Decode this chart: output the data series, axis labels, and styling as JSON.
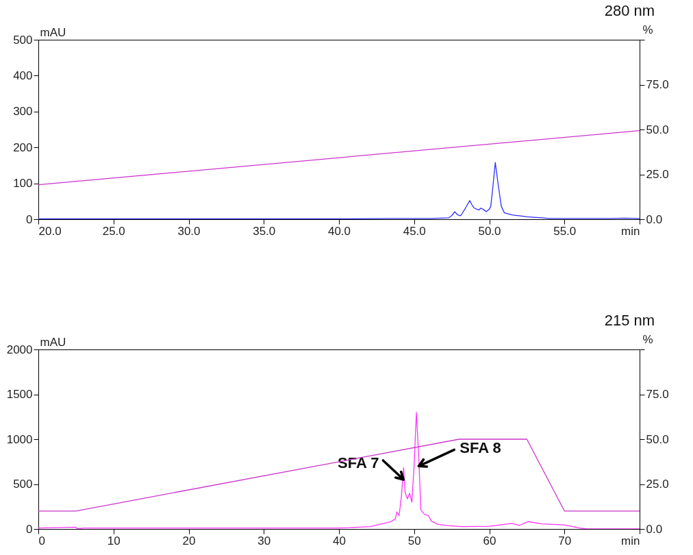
{
  "chart_data": [
    {
      "type": "line",
      "title": "280 nm",
      "ylabel": "mAU",
      "y2label": "%",
      "xlim": [
        20,
        60
      ],
      "xticks": [
        {
          "value": 20,
          "label": "20.0"
        },
        {
          "value": 25,
          "label": "25.0"
        },
        {
          "value": 30,
          "label": "30.0"
        },
        {
          "value": 35,
          "label": "35.0"
        },
        {
          "value": 40,
          "label": "40.0"
        },
        {
          "value": 45,
          "label": "45.0"
        },
        {
          "value": 50,
          "label": "50.0"
        },
        {
          "value": 55,
          "label": "55.0"
        },
        {
          "value": 60,
          "label": "min"
        }
      ],
      "ylim": [
        0,
        500
      ],
      "yticks": [
        0,
        100,
        200,
        300,
        400,
        500
      ],
      "y2lim": [
        0,
        100
      ],
      "y2ticks": [
        {
          "value": 0,
          "label": "0.0"
        },
        {
          "value": 25,
          "label": "25.0"
        },
        {
          "value": 50,
          "label": "50.0"
        },
        {
          "value": 75,
          "label": "75.0"
        },
        {
          "value": 100,
          "label": null
        }
      ],
      "series": [
        {
          "color": "#2e2eff",
          "x": [
            20,
            30,
            40,
            43.5,
            46,
            46.8,
            47.3,
            47.5,
            47.7,
            47.9,
            48.1,
            48.4,
            48.7,
            48.85,
            49.0,
            49.3,
            49.45,
            49.65,
            49.8,
            50.0,
            50.1,
            50.25,
            50.4,
            50.6,
            50.8,
            51.0,
            51.5,
            52.5,
            53.5,
            54,
            56,
            58,
            59,
            60
          ],
          "values": [
            1,
            1,
            1,
            2,
            2,
            3,
            4,
            10,
            21,
            12,
            10,
            30,
            52,
            40,
            31,
            26,
            31,
            26,
            21,
            28,
            36,
            94,
            158,
            94,
            36,
            18,
            12,
            7,
            4,
            2,
            2,
            2,
            3,
            2
          ]
        },
        {
          "color": "#cc33cc",
          "axis": "y2",
          "x": [
            20,
            60
          ],
          "values": [
            19.2,
            49.4
          ]
        }
      ]
    },
    {
      "type": "line",
      "title": "215 nm",
      "ylabel": "mAU",
      "y2label": "%",
      "xlim": [
        0,
        80
      ],
      "xticks": [
        0,
        10,
        20,
        30,
        40,
        50,
        60,
        70,
        {
          "value": 80,
          "label": "min"
        }
      ],
      "ylim": [
        0,
        2000
      ],
      "yticks": [
        0,
        500,
        1000,
        1500,
        2000
      ],
      "y2lim": [
        0,
        100
      ],
      "y2ticks": [
        {
          "value": 0,
          "label": "0.0"
        },
        {
          "value": 25,
          "label": "25.0"
        },
        {
          "value": 50,
          "label": "50.0"
        },
        {
          "value": 75,
          "label": "75.0"
        },
        {
          "value": 100,
          "label": null
        }
      ],
      "annotations": [
        {
          "text": "SFA 7",
          "x": 48.6,
          "y": 550
        },
        {
          "text": "SFA 8",
          "x": 50.6,
          "y": 700
        }
      ],
      "series": [
        {
          "color": "#ff33ff",
          "x": [
            0,
            5,
            5.2,
            6,
            20,
            40,
            44.1,
            46.0,
            46.9,
            47.5,
            47.7,
            48.0,
            48.3,
            48.6,
            48.8,
            49.1,
            49.4,
            49.7,
            50.0,
            50.3,
            50.6,
            50.9,
            51.4,
            51.9,
            52.3,
            53.2,
            54.5,
            56.4,
            60,
            63,
            64,
            65.2,
            67,
            70,
            72,
            73,
            75,
            78,
            80
          ],
          "values": [
            10,
            20,
            0,
            10,
            10,
            10,
            25,
            62,
            82,
            112,
            191,
            149,
            360,
            682,
            409,
            335,
            397,
            298,
            707,
            1298,
            831,
            211,
            161,
            149,
            87,
            50,
            37,
            25,
            30,
            62,
            40,
            82,
            57,
            45,
            10,
            0,
            0,
            0,
            0
          ]
        },
        {
          "color": "#cc33cc",
          "axis": "y2",
          "x": [
            0,
            5,
            56,
            65,
            70,
            80
          ],
          "values": [
            10,
            10,
            50,
            50,
            10,
            10
          ]
        }
      ]
    }
  ]
}
